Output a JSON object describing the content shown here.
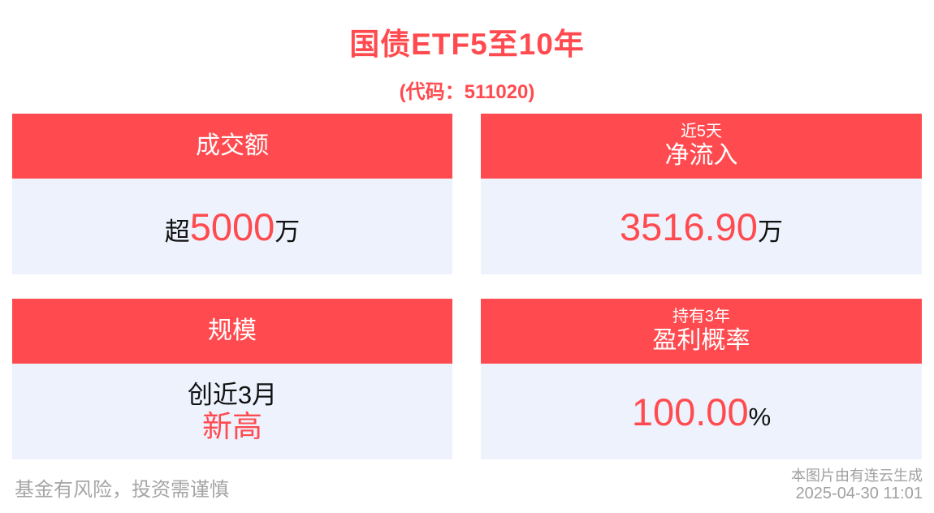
{
  "page": {
    "title": "国债ETF5至10年",
    "subtitle": "(代码：511020)",
    "accent_color": "#ff4b4f",
    "card_body_color": "#edf2fd",
    "footer_text_color": "#a5a5a5"
  },
  "cards": [
    {
      "id": "turnover",
      "header_small": "",
      "header_main": "成交额",
      "value_prefix": "超",
      "value_main": "5000",
      "value_suffix": "万"
    },
    {
      "id": "net-inflow",
      "header_small": "近5天",
      "header_main": "净流入",
      "value_prefix": "",
      "value_main": "3516.90",
      "value_suffix": "万"
    },
    {
      "id": "scale",
      "header_small": "",
      "header_main": "规模",
      "value_line1": "创近3月",
      "value_line2": "新高"
    },
    {
      "id": "profit-probability",
      "header_small": "持有3年",
      "header_main": "盈利概率",
      "value_prefix": "",
      "value_main": "100.00",
      "value_suffix": "%"
    }
  ],
  "footer": {
    "disclaimer": "基金有风险，投资需谨慎",
    "source": "本图片由有连云生成",
    "timestamp": "2025-04-30 11:01"
  }
}
